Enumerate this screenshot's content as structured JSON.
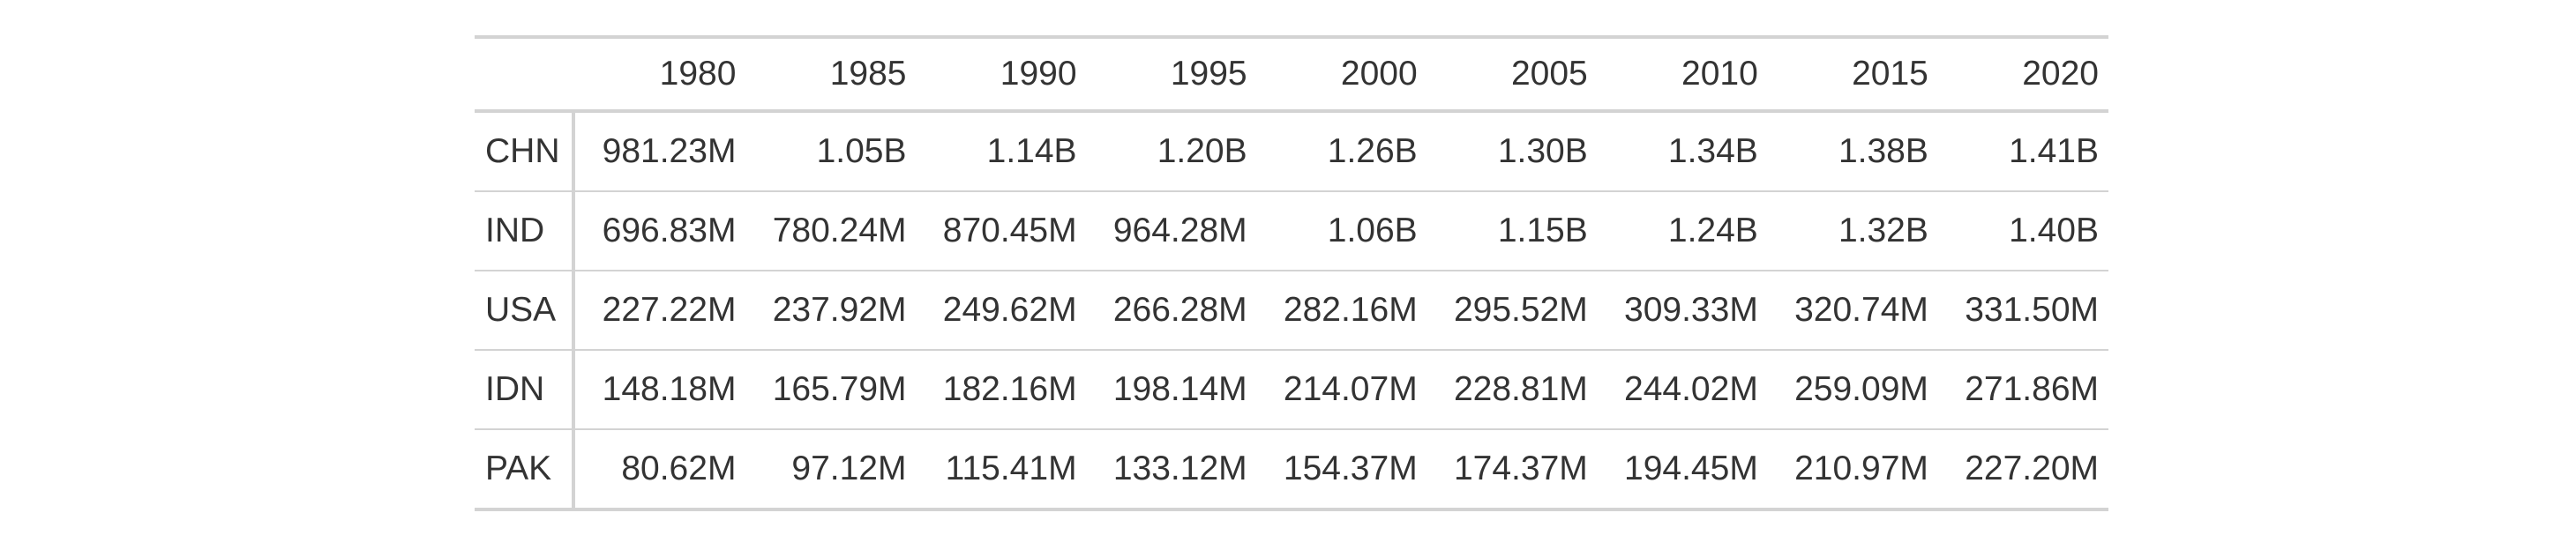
{
  "table": {
    "columns": [
      "",
      "1980",
      "1985",
      "1990",
      "1995",
      "2000",
      "2005",
      "2010",
      "2015",
      "2020"
    ],
    "rows": [
      {
        "label": "CHN",
        "values": [
          "981.23M",
          "1.05B",
          "1.14B",
          "1.20B",
          "1.26B",
          "1.30B",
          "1.34B",
          "1.38B",
          "1.41B"
        ]
      },
      {
        "label": "IND",
        "values": [
          "696.83M",
          "780.24M",
          "870.45M",
          "964.28M",
          "1.06B",
          "1.15B",
          "1.24B",
          "1.32B",
          "1.40B"
        ]
      },
      {
        "label": "USA",
        "values": [
          "227.22M",
          "237.92M",
          "249.62M",
          "266.28M",
          "282.16M",
          "295.52M",
          "309.33M",
          "320.74M",
          "331.50M"
        ]
      },
      {
        "label": "IDN",
        "values": [
          "148.18M",
          "165.79M",
          "182.16M",
          "198.14M",
          "214.07M",
          "228.81M",
          "244.02M",
          "259.09M",
          "271.86M"
        ]
      },
      {
        "label": "PAK",
        "values": [
          "80.62M",
          "97.12M",
          "115.41M",
          "133.12M",
          "154.37M",
          "174.37M",
          "194.45M",
          "210.97M",
          "227.20M"
        ]
      }
    ]
  }
}
